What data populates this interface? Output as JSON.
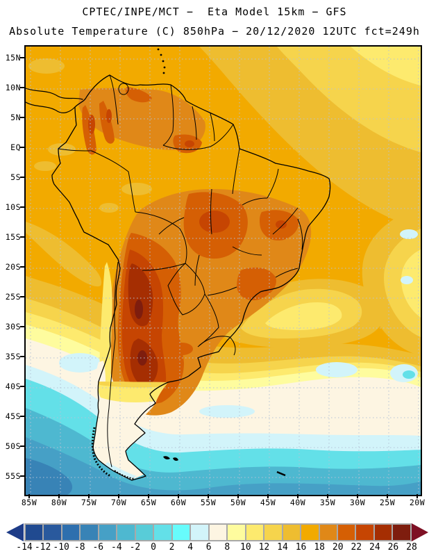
{
  "header": {
    "line1": "CPTEC/INPE/MCT −  Eta Model 15km − GFS",
    "line2": "Absolute Temperature (C) 850hPa − 20/12/2020 12UTC fct=249h"
  },
  "map": {
    "lat_labels": [
      "15N",
      "10N",
      "5N",
      "EQ",
      "5S",
      "10S",
      "15S",
      "20S",
      "25S",
      "30S",
      "35S",
      "40S",
      "45S",
      "50S",
      "55S"
    ],
    "lon_labels": [
      "85W",
      "80W",
      "75W",
      "70W",
      "65W",
      "60W",
      "55W",
      "50W",
      "45W",
      "40W",
      "35W",
      "30W",
      "25W",
      "20W"
    ],
    "gridline_color": "#b4c2d6",
    "coastline_color": "#000000"
  },
  "colorbar": {
    "unit": "C",
    "values": [
      "-14",
      "-12",
      "-10",
      "-8",
      "-6",
      "-4",
      "-2",
      "0",
      "2",
      "4",
      "6",
      "8",
      "10",
      "12",
      "14",
      "16",
      "18",
      "20",
      "22",
      "24",
      "26",
      "28"
    ],
    "cell_colors": [
      "#204A90",
      "#29599D",
      "#2E6FAE",
      "#3883B6",
      "#46A0C6",
      "#4EB8D0",
      "#58CCD8",
      "#63E0E8",
      "#67FCFC",
      "#D2F4FA",
      "#FDF5E2",
      "#FEFC9E",
      "#FDEA6E",
      "#F6D44C",
      "#EEBD30",
      "#F2AA00",
      "#E08818",
      "#D55F04",
      "#C64502",
      "#A52E02",
      "#7E1D0E"
    ],
    "left_arrow_color": "#1E3C88",
    "right_arrow_color": "#7E1024",
    "border_color": "#A8A8A8"
  }
}
